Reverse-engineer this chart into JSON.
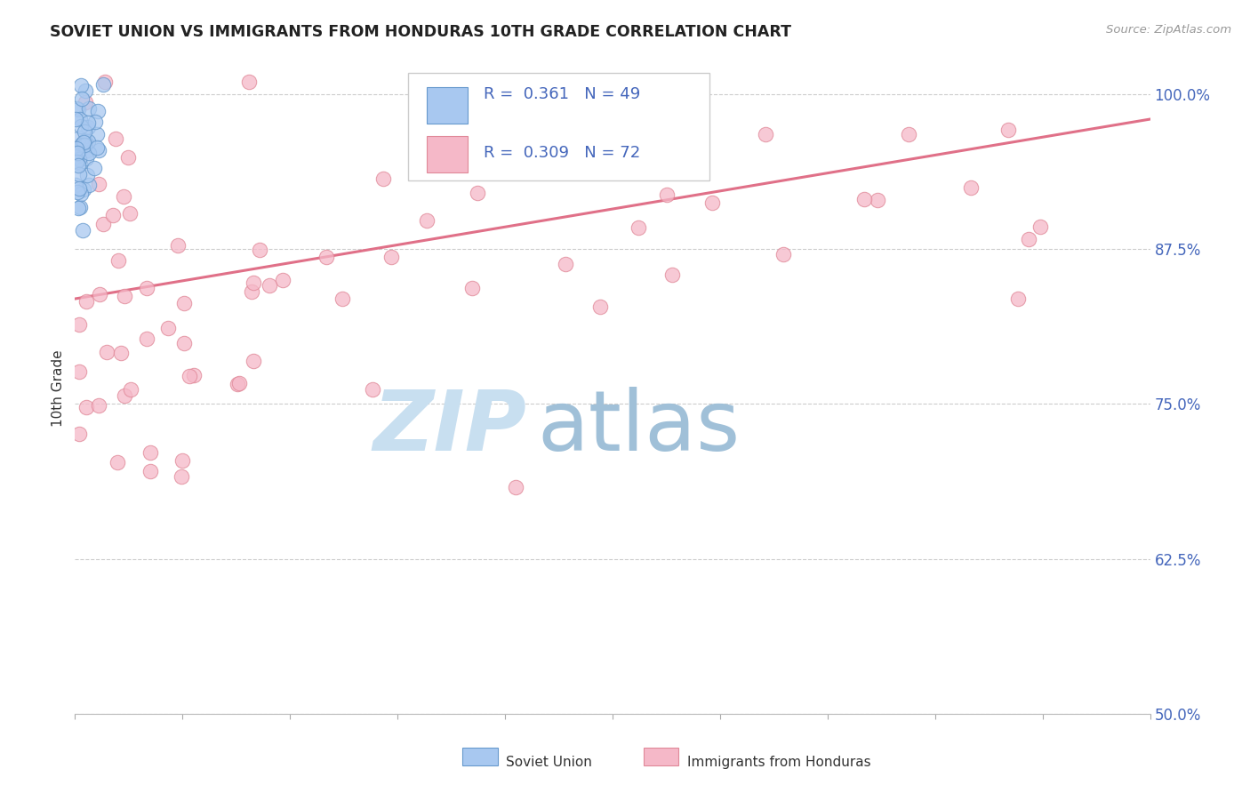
{
  "title": "SOVIET UNION VS IMMIGRANTS FROM HONDURAS 10TH GRADE CORRELATION CHART",
  "source": "Source: ZipAtlas.com",
  "ylabel": "10th Grade",
  "y_ticks": [
    50.0,
    62.5,
    75.0,
    87.5,
    100.0
  ],
  "y_tick_labels": [
    "50.0%",
    "62.5%",
    "75.0%",
    "87.5%",
    "100.0%"
  ],
  "x_ticks": [
    0.0,
    5.0,
    10.0,
    15.0,
    20.0,
    25.0,
    30.0,
    35.0,
    40.0,
    45.0,
    50.0
  ],
  "x_tick_labels": [
    "0.0%",
    "",
    "",
    "",
    "",
    "",
    "",
    "",
    "",
    "",
    "50.0%"
  ],
  "xmin": 0.0,
  "xmax": 50.0,
  "ymin": 50.0,
  "ymax": 102.5,
  "series1_color": "#a8c8f0",
  "series1_edgecolor": "#6699cc",
  "series1_label": "Soviet Union",
  "series1_R": 0.361,
  "series1_N": 49,
  "series2_color": "#f5b8c8",
  "series2_edgecolor": "#e08898",
  "series2_label": "Immigrants from Honduras",
  "series2_R": 0.309,
  "series2_N": 72,
  "trendline2_color": "#e07088",
  "watermark_text": "ZIP",
  "watermark_text2": "atlas",
  "watermark_color1": "#c8dff0",
  "watermark_color2": "#a0c0d8",
  "background_color": "#ffffff",
  "grid_color": "#cccccc",
  "tick_label_color": "#4466bb",
  "title_color": "#222222",
  "legend_text_color": "#4466bb"
}
